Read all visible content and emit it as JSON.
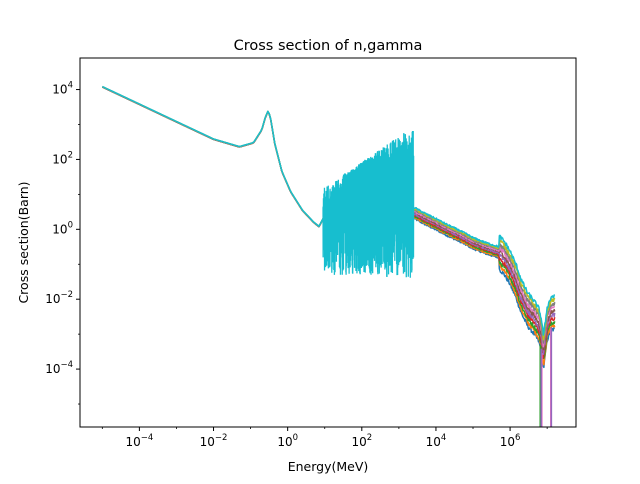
{
  "chart_data": {
    "type": "line",
    "title": "Cross section of n,gamma",
    "xlabel": "Energy(MeV)",
    "ylabel": "Cross section(Barn)",
    "xscale": "log",
    "yscale": "log",
    "xlim": [
      2.5e-06,
      60000000.0
    ],
    "ylim": [
      2.2e-06,
      80000.0
    ],
    "grid": false,
    "legend": "none",
    "x_ticks": [
      {
        "value": 0.0001,
        "base": "10",
        "exp": "−4"
      },
      {
        "value": 0.01,
        "base": "10",
        "exp": "−2"
      },
      {
        "value": 1.0,
        "base": "10",
        "exp": "0"
      },
      {
        "value": 100.0,
        "base": "10",
        "exp": "2"
      },
      {
        "value": 10000.0,
        "base": "10",
        "exp": "4"
      },
      {
        "value": 1000000.0,
        "base": "10",
        "exp": "6"
      }
    ],
    "y_ticks": [
      {
        "value": 0.0001,
        "base": "10",
        "exp": "−4"
      },
      {
        "value": 0.01,
        "base": "10",
        "exp": "−2"
      },
      {
        "value": 1.0,
        "base": "10",
        "exp": "0"
      },
      {
        "value": 100.0,
        "base": "10",
        "exp": "2"
      },
      {
        "value": 10000.0,
        "base": "10",
        "exp": "4"
      }
    ],
    "palette": [
      "#1f77b4",
      "#ff7f0e",
      "#2ca02c",
      "#d62728",
      "#9467bd",
      "#8c564b",
      "#e377c2",
      "#7f7f7f",
      "#bcbd22",
      "#17becf"
    ],
    "series_count": 10,
    "shared_curve": {
      "x": [
        1e-05,
        0.0001,
        0.001,
        0.01,
        0.05,
        0.12,
        0.2,
        0.25,
        0.3,
        0.35,
        0.45,
        0.7,
        1.2,
        2.5,
        5.0,
        7.0,
        9.0
      ],
      "y": [
        12000,
        3800,
        1200,
        380,
        230,
        300,
        700,
        1600,
        2500,
        1400,
        280,
        45,
        12,
        3.5,
        1.6,
        1.2,
        2.0
      ]
    },
    "resonance_region": {
      "x_range": [
        9.0,
        2500
      ],
      "y_envelope_max": [
        15,
        900
      ],
      "y_envelope_min": [
        0.05,
        0.04
      ],
      "color": "#17becf"
    },
    "high_energy_curve": {
      "x": [
        2500,
        5000,
        10000.0,
        20000.0,
        50000.0,
        100000.0,
        200000.0,
        300000.0,
        500000.0,
        700000.0,
        1000000.0,
        1500000.0,
        2000000.0,
        3000000.0,
        4000000.0,
        5000000.0,
        6000000.0,
        7000000.0,
        8000000.0,
        10000000.0,
        13000000.0,
        16000000.0
      ],
      "y": [
        3.0,
        2.0,
        1.4,
        0.95,
        0.6,
        0.4,
        0.3,
        0.26,
        0.22,
        0.15,
        0.08,
        0.03,
        0.012,
        0.005,
        0.0035,
        0.0025,
        0.0018,
        0.0009,
        0.0003,
        0.002,
        0.004,
        0.004
      ]
    }
  }
}
